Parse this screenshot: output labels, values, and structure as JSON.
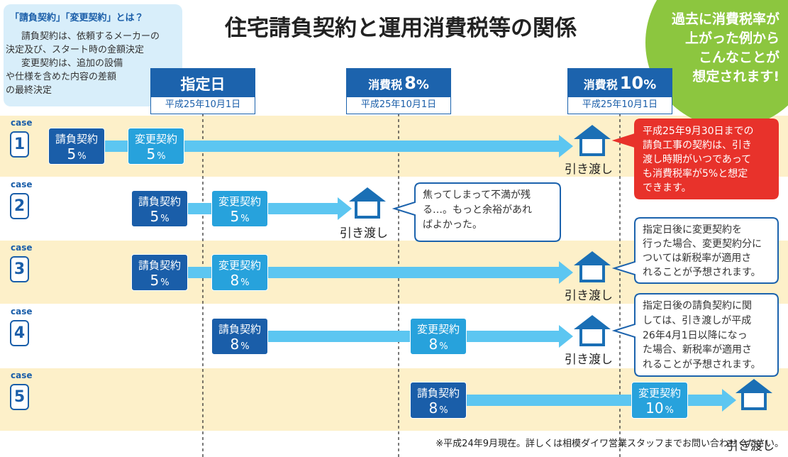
{
  "intro": {
    "title": "「請負契約」「変更契約」とは？",
    "lines": [
      "請負契約は、依頼するメーカーの",
      "決定及び、スタート時の金額決定",
      "変更契約は、追加の設備",
      "や仕様を含めた内容の差額",
      "の最終決定"
    ]
  },
  "title": "住宅請負契約と運用消費税等の関係",
  "badge": {
    "lines": [
      "過去に消費税率が",
      "上がった例から",
      "こんなことが",
      "想定されます!"
    ]
  },
  "columns": [
    {
      "label": "指定日",
      "date": "平成25年10月1日"
    },
    {
      "label": "消費税",
      "value": "8",
      "unit": "%",
      "date": "平成25年10月1日"
    },
    {
      "label": "消費税",
      "value": "10",
      "unit": "%",
      "date": "平成25年10月1日"
    }
  ],
  "cases": [
    {
      "label": "case",
      "number": "1",
      "contracts": [
        {
          "name": "請負契約",
          "rate": "5",
          "unit": "%"
        },
        {
          "name": "変更契約",
          "rate": "5",
          "unit": "%"
        }
      ],
      "handover": "引き渡し",
      "note": [
        "平成25年9月30日までの",
        "請負工事の契約は、引き",
        "渡し時期がいつであって",
        "も消費税率が5%と想定",
        "できます。"
      ]
    },
    {
      "label": "case",
      "number": "2",
      "contracts": [
        {
          "name": "請負契約",
          "rate": "5",
          "unit": "%"
        },
        {
          "name": "変更契約",
          "rate": "5",
          "unit": "%"
        }
      ],
      "handover": "引き渡し",
      "note": [
        "焦ってしまって不満が残",
        "る…。もっと余裕があれ",
        "ばよかった。"
      ]
    },
    {
      "label": "case",
      "number": "3",
      "contracts": [
        {
          "name": "請負契約",
          "rate": "5",
          "unit": "%"
        },
        {
          "name": "変更契約",
          "rate": "8",
          "unit": "%"
        }
      ],
      "handover": "引き渡し",
      "note": [
        "指定日後に変更契約を",
        "行った場合、変更契約分に",
        "ついては新税率が適用さ",
        "れることが予想されます。"
      ]
    },
    {
      "label": "case",
      "number": "4",
      "contracts": [
        {
          "name": "請負契約",
          "rate": "8",
          "unit": "%"
        },
        {
          "name": "変更契約",
          "rate": "8",
          "unit": "%"
        }
      ],
      "handover": "引き渡し",
      "note": [
        "指定日後の請負契約に関",
        "しては、引き渡しが平成",
        "26年4月1日以降になっ",
        "た場合、新税率が適用さ",
        "れることが予想されます。"
      ]
    },
    {
      "label": "case",
      "number": "5",
      "contracts": [
        {
          "name": "請負契約",
          "rate": "8",
          "unit": "%"
        },
        {
          "name": "変更契約",
          "rate": "10",
          "unit": "%"
        }
      ],
      "handover": "引き渡し"
    }
  ],
  "footnote": "※平成24年9月現在。詳しくは相模ダイワ営業スタッフまでお問い合わせください。"
}
